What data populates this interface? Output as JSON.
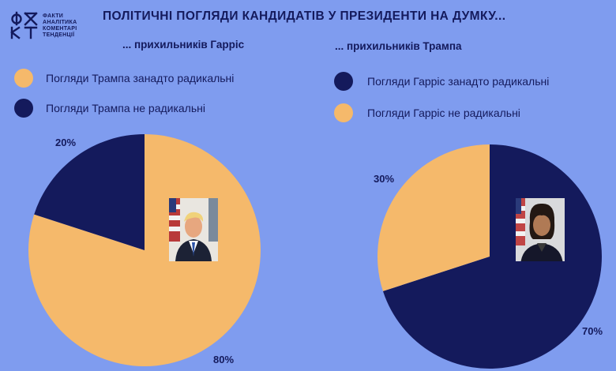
{
  "logo": {
    "mark": "ФДКТ",
    "lines": [
      "ФАКТИ",
      "АНАЛІТИКА",
      "КОМЕНТАРІ",
      "ТЕНДЕНЦІЇ"
    ]
  },
  "title": "ПОЛІТИЧНІ ПОГЛЯДИ КАНДИДАТІВ У ПРЕЗИДЕНТИ НА ДУМКУ...",
  "colors": {
    "background": "#7f9cef",
    "navy": "#141a5c",
    "orange": "#f5b96b"
  },
  "chart_data": [
    {
      "type": "pie",
      "subtitle": "... прихильників Гарріс",
      "legend": [
        {
          "label": "Погляди Трампа занадто радикальні",
          "color": "#f5b96b"
        },
        {
          "label": "Погляди Трампа не радикальні",
          "color": "#141a5c"
        }
      ],
      "slices": [
        {
          "name": "Погляди Трампа занадто радикальні",
          "value": 80,
          "label": "80%",
          "color": "#f5b96b"
        },
        {
          "name": "Погляди Трампа не радикальні",
          "value": 20,
          "label": "20%",
          "color": "#141a5c"
        }
      ],
      "center_photo": "trump-portrait"
    },
    {
      "type": "pie",
      "subtitle": "... прихильників Трампа",
      "legend": [
        {
          "label": "Погляди Гарріс занадто радикальні",
          "color": "#141a5c"
        },
        {
          "label": "Погляди Гарріс не радикальні",
          "color": "#f5b96b"
        }
      ],
      "slices": [
        {
          "name": "Погляди Гарріс занадто радикальні",
          "value": 70,
          "label": "70%",
          "color": "#141a5c"
        },
        {
          "name": "Погляди Гарріс не радикальні",
          "value": 30,
          "label": "30%",
          "color": "#f5b96b"
        }
      ],
      "center_photo": "harris-portrait"
    }
  ]
}
